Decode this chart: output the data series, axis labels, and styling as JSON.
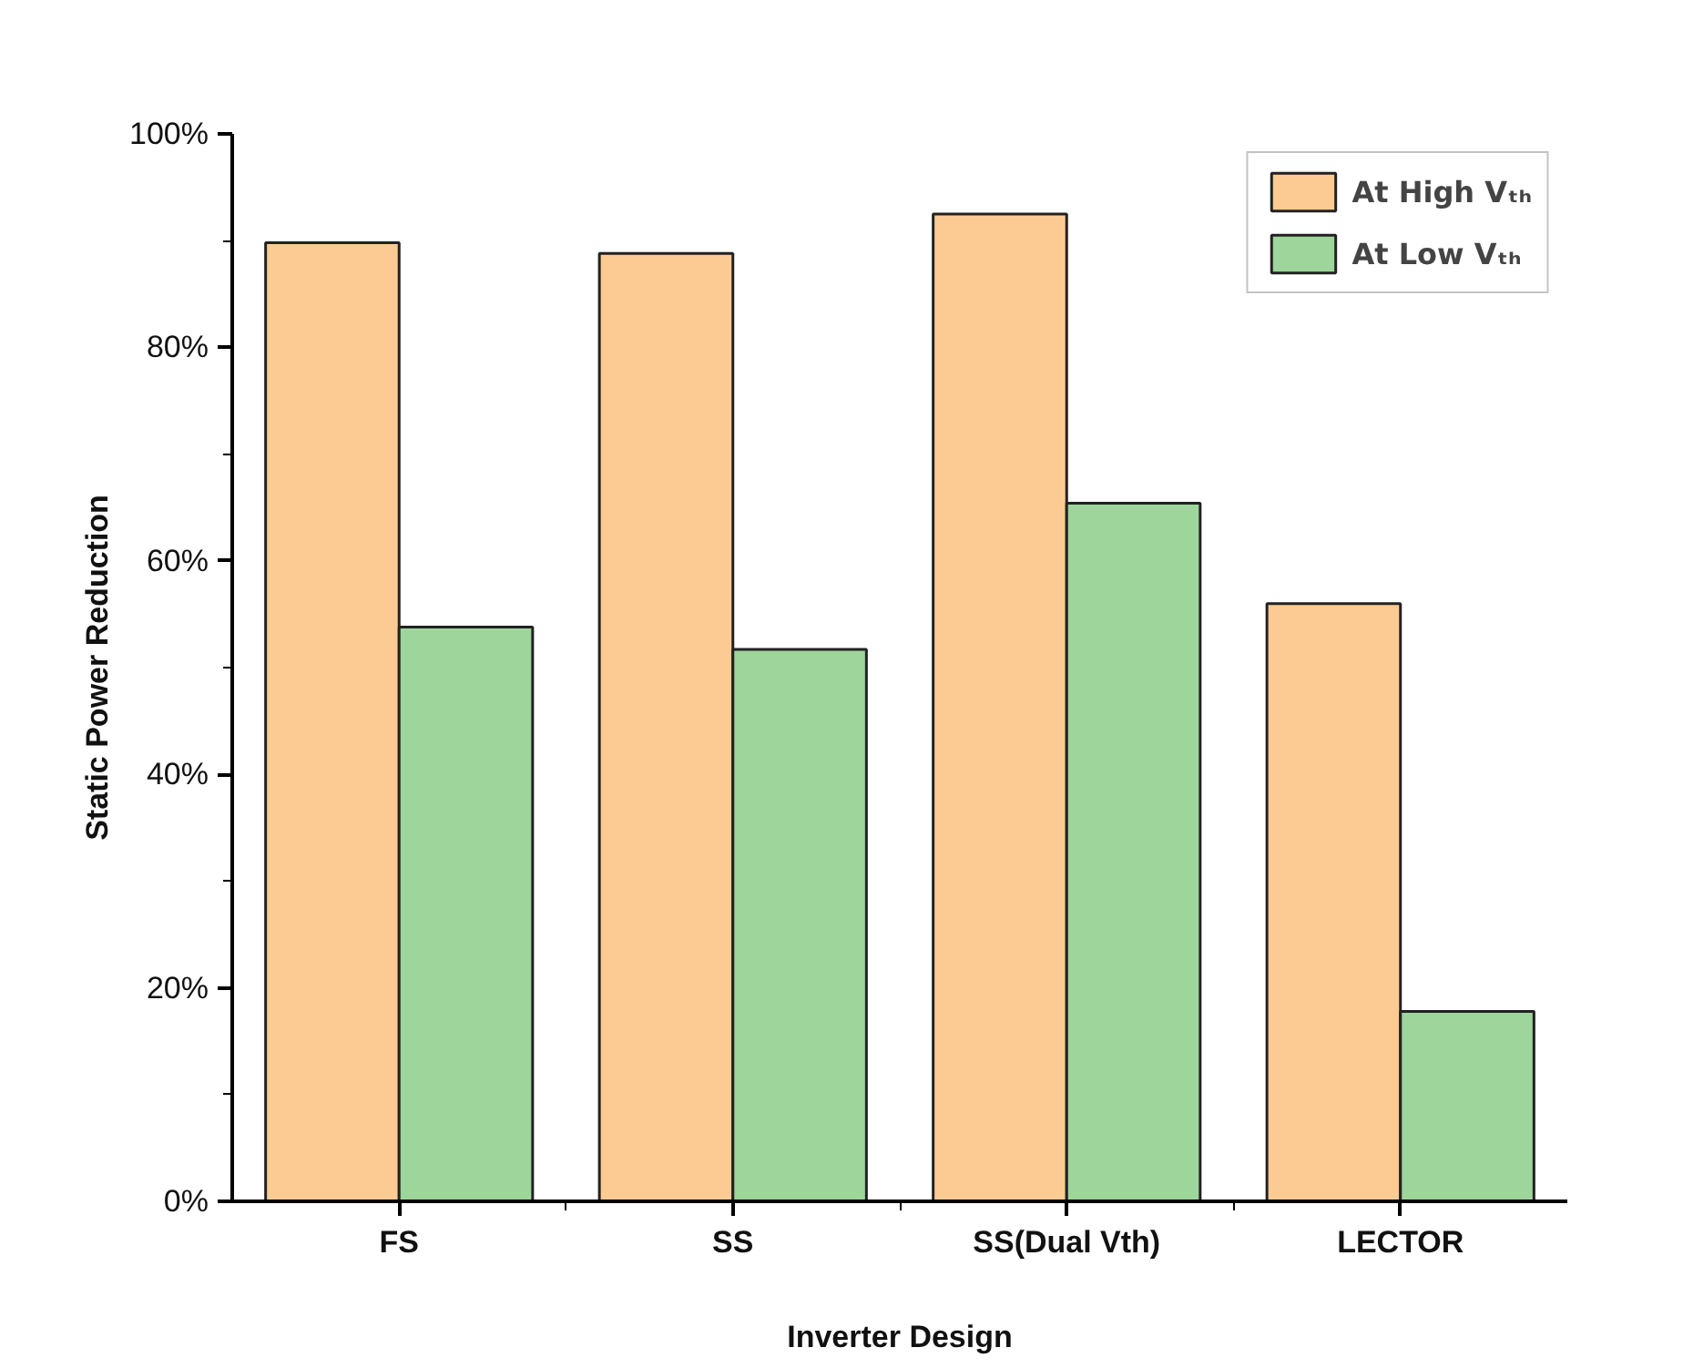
{
  "chart_data": {
    "type": "bar",
    "xlabel": "Inverter Design",
    "ylabel": "Static Power Reduction",
    "categories": [
      "FS",
      "SS",
      "SS(Dual Vth)",
      "LECTOR"
    ],
    "series": [
      {
        "name": "At High Vₜₕ",
        "color": "#fccb93",
        "values": [
          89.8,
          88.8,
          92.5,
          56.0
        ]
      },
      {
        "name": "At Low Vₜₕ",
        "color": "#9dd59b",
        "values": [
          53.8,
          51.7,
          65.4,
          17.8
        ]
      }
    ],
    "ylim": [
      0,
      100
    ],
    "yticks": [
      {
        "value": 0,
        "label": "0%"
      },
      {
        "value": 20,
        "label": "20%"
      },
      {
        "value": 40,
        "label": "40%"
      },
      {
        "value": 60,
        "label": "60%"
      },
      {
        "value": 80,
        "label": "80%"
      },
      {
        "value": 100,
        "label": "100%"
      }
    ],
    "grid": false,
    "legend": "top right"
  }
}
